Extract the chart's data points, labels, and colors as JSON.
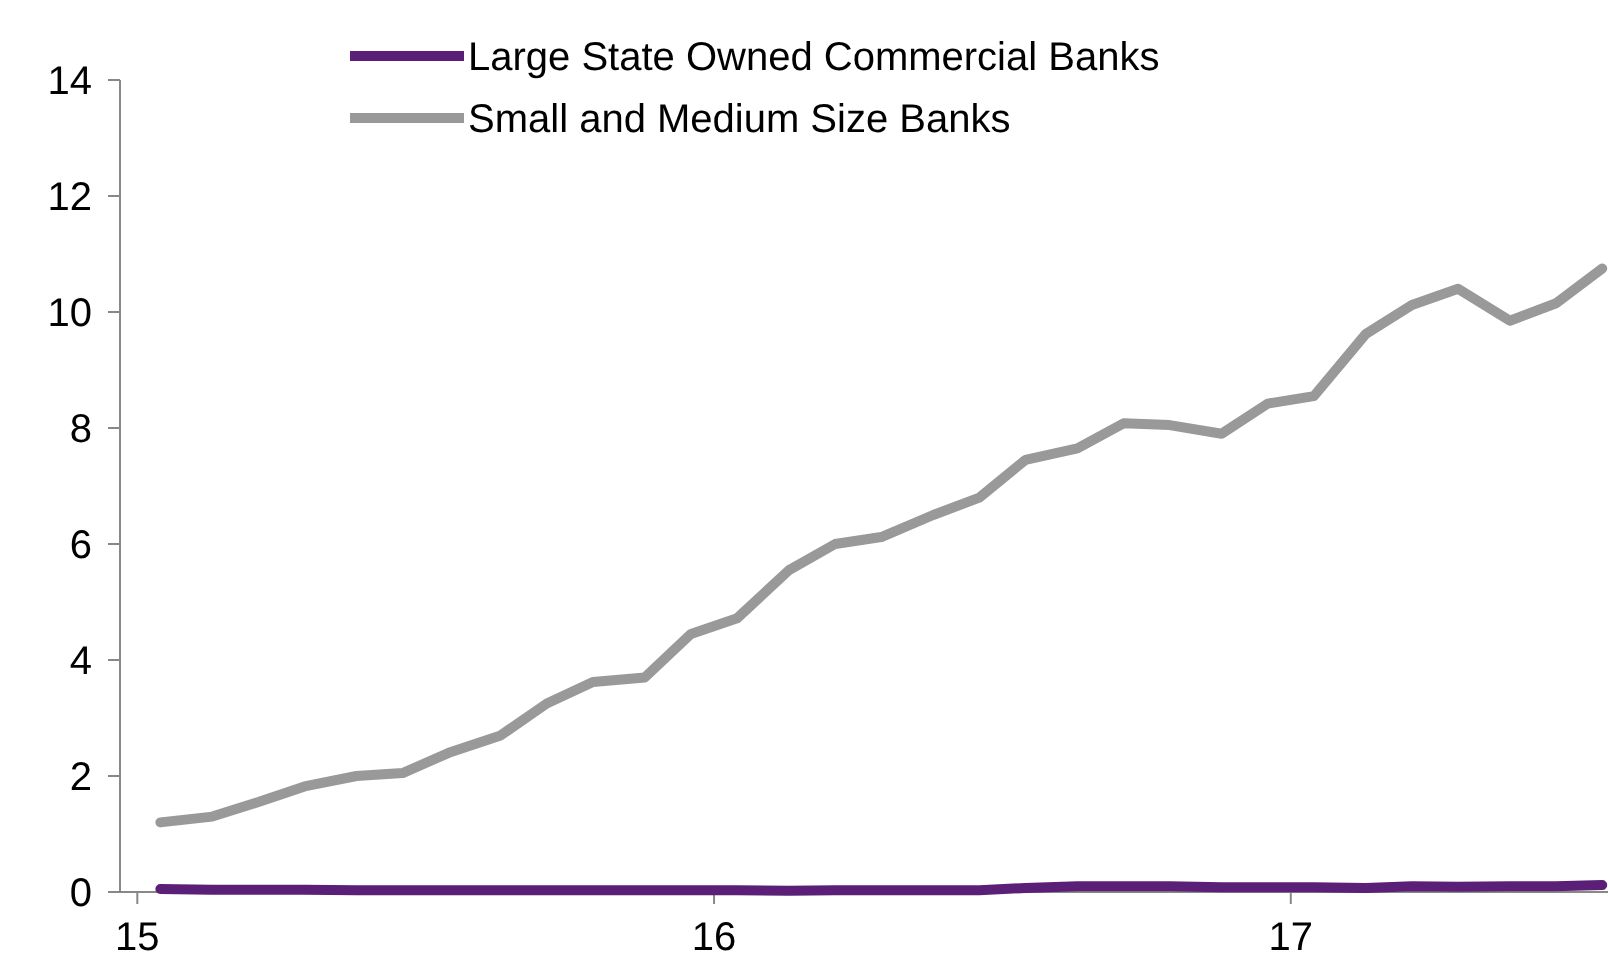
{
  "chart_data": {
    "type": "line",
    "x": [
      15.04,
      15.13,
      15.21,
      15.29,
      15.38,
      15.46,
      15.54,
      15.63,
      15.71,
      15.79,
      15.88,
      15.96,
      16.04,
      16.13,
      16.21,
      16.29,
      16.38,
      16.46,
      16.54,
      16.63,
      16.71,
      16.79,
      16.88,
      16.96,
      17.04,
      17.13,
      17.21,
      17.29,
      17.38,
      17.46,
      17.54
    ],
    "series": [
      {
        "name": "Large State Owned Commercial Banks",
        "color": "#5b1f78",
        "values": [
          0.05,
          0.04,
          0.04,
          0.04,
          0.03,
          0.03,
          0.03,
          0.03,
          0.03,
          0.03,
          0.03,
          0.03,
          0.03,
          0.02,
          0.03,
          0.03,
          0.03,
          0.03,
          0.07,
          0.1,
          0.1,
          0.1,
          0.08,
          0.08,
          0.08,
          0.07,
          0.1,
          0.09,
          0.1,
          0.1,
          0.12
        ]
      },
      {
        "name": "Small and Medium Size Banks",
        "color": "#999999",
        "values": [
          1.2,
          1.3,
          1.55,
          1.82,
          2.0,
          2.05,
          2.4,
          2.7,
          3.25,
          3.62,
          3.7,
          4.45,
          4.72,
          5.55,
          6.0,
          6.12,
          6.5,
          6.8,
          7.45,
          7.65,
          8.08,
          8.05,
          7.9,
          8.42,
          8.55,
          9.62,
          10.12,
          10.4,
          9.85,
          10.15,
          10.75
        ]
      }
    ],
    "xlim": [
      14.97,
      17.55
    ],
    "xticks": [
      {
        "value": 15,
        "label": "15"
      },
      {
        "value": 16,
        "label": "16"
      },
      {
        "value": 17,
        "label": "17"
      }
    ],
    "ylim": [
      0,
      14
    ],
    "yticks": [
      0,
      2,
      4,
      6,
      8,
      10,
      12,
      14
    ],
    "legend": "top",
    "grid": false,
    "marker": "none",
    "line_style": "solid"
  }
}
